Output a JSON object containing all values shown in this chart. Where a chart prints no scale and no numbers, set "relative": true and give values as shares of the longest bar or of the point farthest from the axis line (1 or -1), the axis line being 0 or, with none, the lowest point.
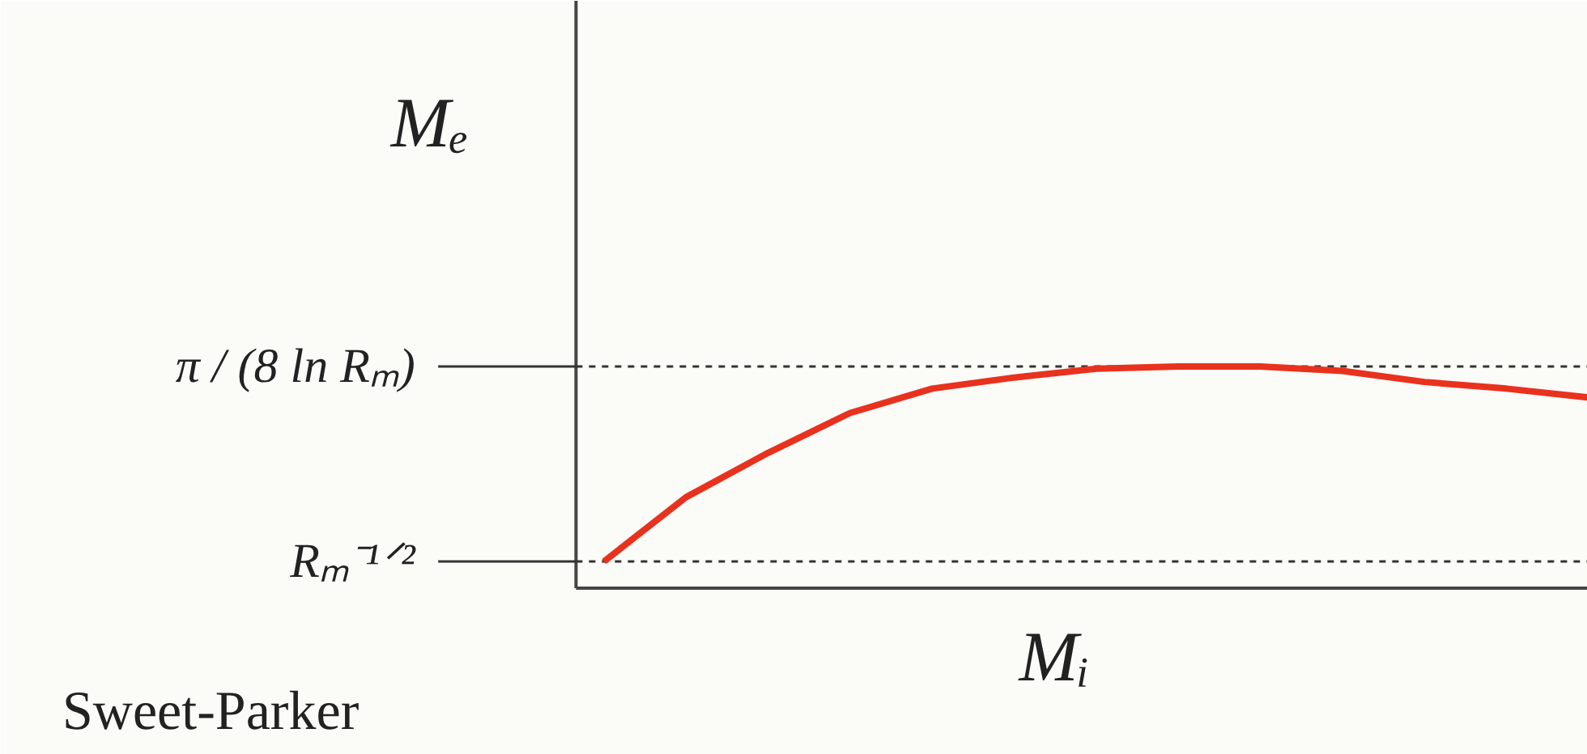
{
  "chart_data": {
    "type": "line",
    "relative": true,
    "ylabel": "Mₑ",
    "xlabel": "Mᵢ",
    "categories": [
      null,
      null,
      null,
      null,
      null,
      null,
      null,
      null,
      null,
      null,
      null,
      null,
      null
    ],
    "series": [
      {
        "color": "#e8321e",
        "values": [
          0.12,
          0.41,
          0.61,
          0.79,
          0.9,
          0.95,
          0.99,
          1.0,
          1.0,
          0.98,
          0.93,
          0.9,
          0.86
        ]
      }
    ],
    "ref_lines": [
      {
        "axis": "y",
        "value": 1.0,
        "label": "π / (8 ln Rₘ)",
        "color": "#333333",
        "line_style": "dashed"
      },
      {
        "axis": "y",
        "value": 0.12,
        "label": "Rₘ⁻¹ᐟ²",
        "color": "#333333",
        "line_style": "dashed"
      }
    ],
    "annotations": [
      "Sweet-Parker"
    ],
    "grid": false
  }
}
